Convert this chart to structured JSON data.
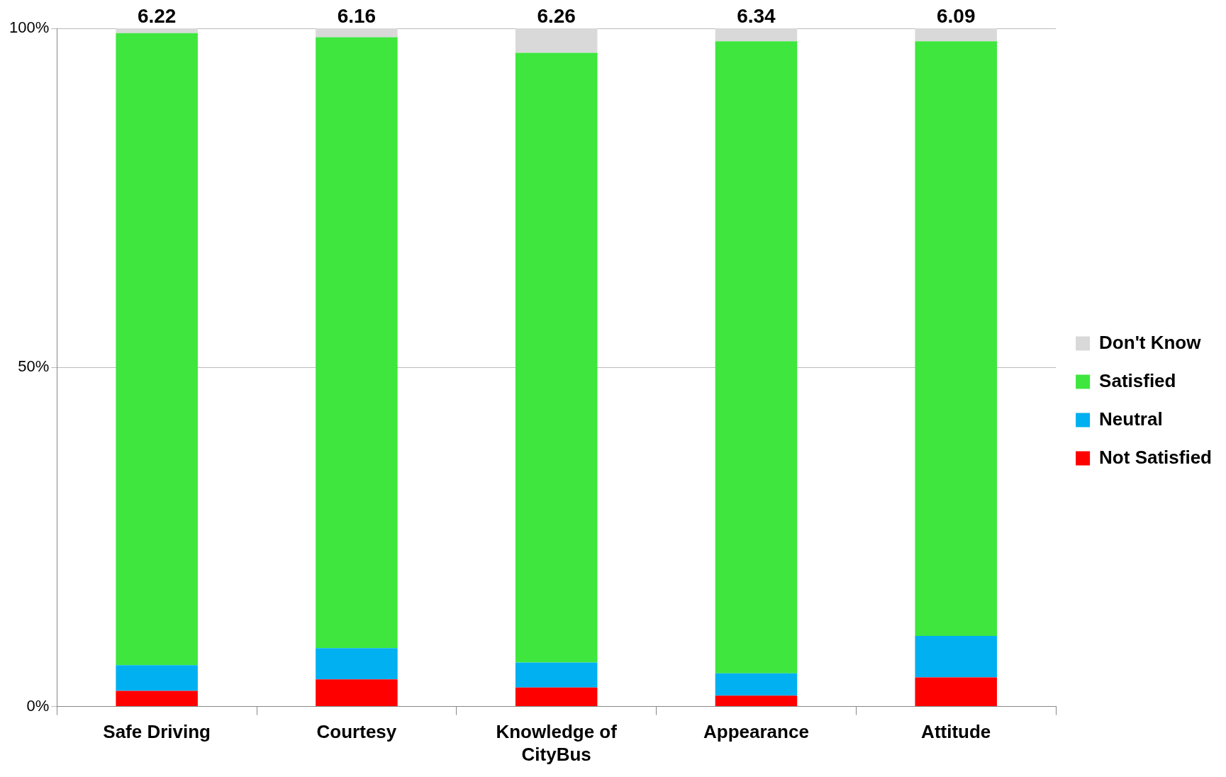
{
  "chart_data": {
    "type": "bar",
    "stacked": true,
    "categories": [
      "Safe Driving",
      "Courtesy",
      "Knowledge of CityBus",
      "Appearance",
      "Attitude"
    ],
    "series": [
      {
        "name": "Not Satisfied",
        "color": "#ff0000",
        "values": [
          2.3,
          4.0,
          2.8,
          1.6,
          4.3
        ]
      },
      {
        "name": "Neutral",
        "color": "#00b0f0",
        "values": [
          3.8,
          4.6,
          3.7,
          3.3,
          6.1
        ]
      },
      {
        "name": "Satisfied",
        "color": "#3ee63e",
        "values": [
          93.2,
          90.1,
          89.9,
          93.2,
          87.7
        ]
      },
      {
        "name": "Don't Know",
        "color": "#d9d9d9",
        "values": [
          0.7,
          1.3,
          3.6,
          1.9,
          1.9
        ]
      }
    ],
    "annotations": [
      {
        "text": "6.22",
        "x": "Safe Driving",
        "y": 100
      },
      {
        "text": "6.16",
        "x": "Courtesy",
        "y": 100
      },
      {
        "text": "6.26",
        "x": "Knowledge of CityBus",
        "y": 100
      },
      {
        "text": "6.34",
        "x": "Appearance",
        "y": 100
      },
      {
        "text": "6.09",
        "x": "Attitude",
        "y": 100
      }
    ],
    "ylim": [
      0,
      100
    ],
    "yticks": [
      {
        "value": 0,
        "label": "0%"
      },
      {
        "value": 50,
        "label": "50%"
      },
      {
        "value": 100,
        "label": "100%"
      }
    ],
    "grid": "y",
    "legend": "right"
  }
}
